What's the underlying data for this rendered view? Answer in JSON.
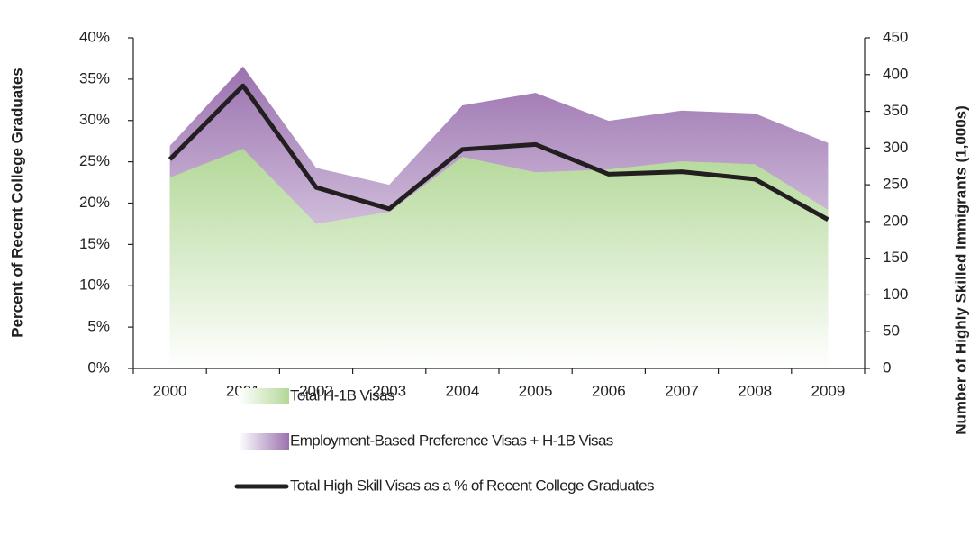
{
  "chart_data": {
    "type": "area-line",
    "categories": [
      "2000",
      "2001",
      "2002",
      "2003",
      "2004",
      "2005",
      "2006",
      "2007",
      "2008",
      "2009"
    ],
    "ylabel": "Percent of Recent College Graduates",
    "y2label": "Number of Highly Skilled Immigrants (1,000s)",
    "ylim": [
      0,
      40
    ],
    "yticks": [
      {
        "value": 0,
        "label": "0%"
      },
      {
        "value": 5,
        "label": "5%"
      },
      {
        "value": 10,
        "label": "10%"
      },
      {
        "value": 15,
        "label": "15%"
      },
      {
        "value": 20,
        "label": "20%"
      },
      {
        "value": 25,
        "label": "25%"
      },
      {
        "value": 30,
        "label": "30%"
      },
      {
        "value": 35,
        "label": "35%"
      },
      {
        "value": 40,
        "label": "40%"
      }
    ],
    "y2lim": [
      0,
      450
    ],
    "y2ticks": [
      0,
      50,
      100,
      150,
      200,
      250,
      300,
      350,
      400,
      450
    ],
    "series": [
      {
        "name": "Employment-Based Preference Visas + H-1B Visas",
        "color": "#9b72b0",
        "kind": "area",
        "axis": "y2",
        "values": [
          303,
          411,
          273,
          250,
          358,
          375,
          337,
          351,
          347,
          307
        ]
      },
      {
        "name": "Total H-1B Visas",
        "color": "#b3d898",
        "kind": "area",
        "axis": "y2",
        "values": [
          260,
          299,
          197,
          213,
          288,
          267,
          271,
          282,
          278,
          216
        ]
      },
      {
        "name": "Total High Skill Visas as a % of Recent College Graduates",
        "color": "#231f20",
        "kind": "line",
        "axis": "y",
        "values": [
          25.3,
          34.2,
          21.9,
          19.3,
          26.5,
          27.1,
          23.5,
          23.8,
          22.9,
          18.0
        ]
      }
    ],
    "legend_order": [
      1,
      0,
      2
    ]
  }
}
